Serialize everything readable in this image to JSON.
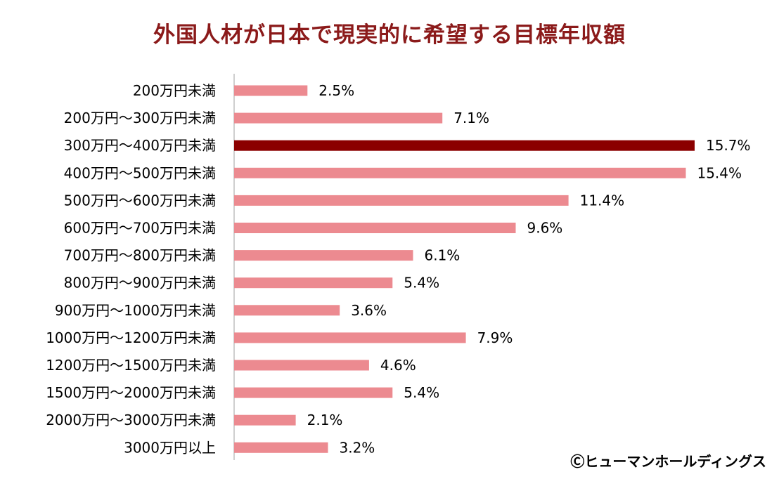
{
  "title": "外国人材が日本で現実的に希望する目標年収額",
  "credit": "Ⓒヒューマンホールディングス",
  "colors": {
    "title": "#8b1a1a",
    "bar": "#ec8a90",
    "highlight": "#8b0000",
    "axis": "#bfbfbf"
  },
  "chart_data": {
    "type": "bar",
    "orientation": "horizontal",
    "title": "外国人材が日本で現実的に希望する目標年収額",
    "categories": [
      "200万円未満",
      "200万円～300万円未満",
      "300万円～400万円未満",
      "400万円～500万円未満",
      "500万円～600万円未満",
      "600万円～700万円未満",
      "700万円～800万円未満",
      "800万円～900万円未満",
      "900万円～1000万円未満",
      "1000万円～1200万円未満",
      "1200万円～1500万円未満",
      "1500万円～2000万円未満",
      "2000万円～3000万円未満",
      "3000万円以上"
    ],
    "values": [
      2.5,
      7.1,
      15.7,
      15.4,
      11.4,
      9.6,
      6.1,
      5.4,
      3.6,
      7.9,
      4.6,
      5.4,
      2.1,
      3.2
    ],
    "value_labels": [
      "2.5%",
      "7.1%",
      "15.7%",
      "15.4%",
      "11.4%",
      "9.6%",
      "6.1%",
      "5.4%",
      "3.6%",
      "7.9%",
      "4.6%",
      "5.4%",
      "2.1%",
      "3.2%"
    ],
    "highlight_index": 2,
    "xlim": [
      0,
      15.7
    ],
    "grid": false,
    "legend": "none"
  }
}
